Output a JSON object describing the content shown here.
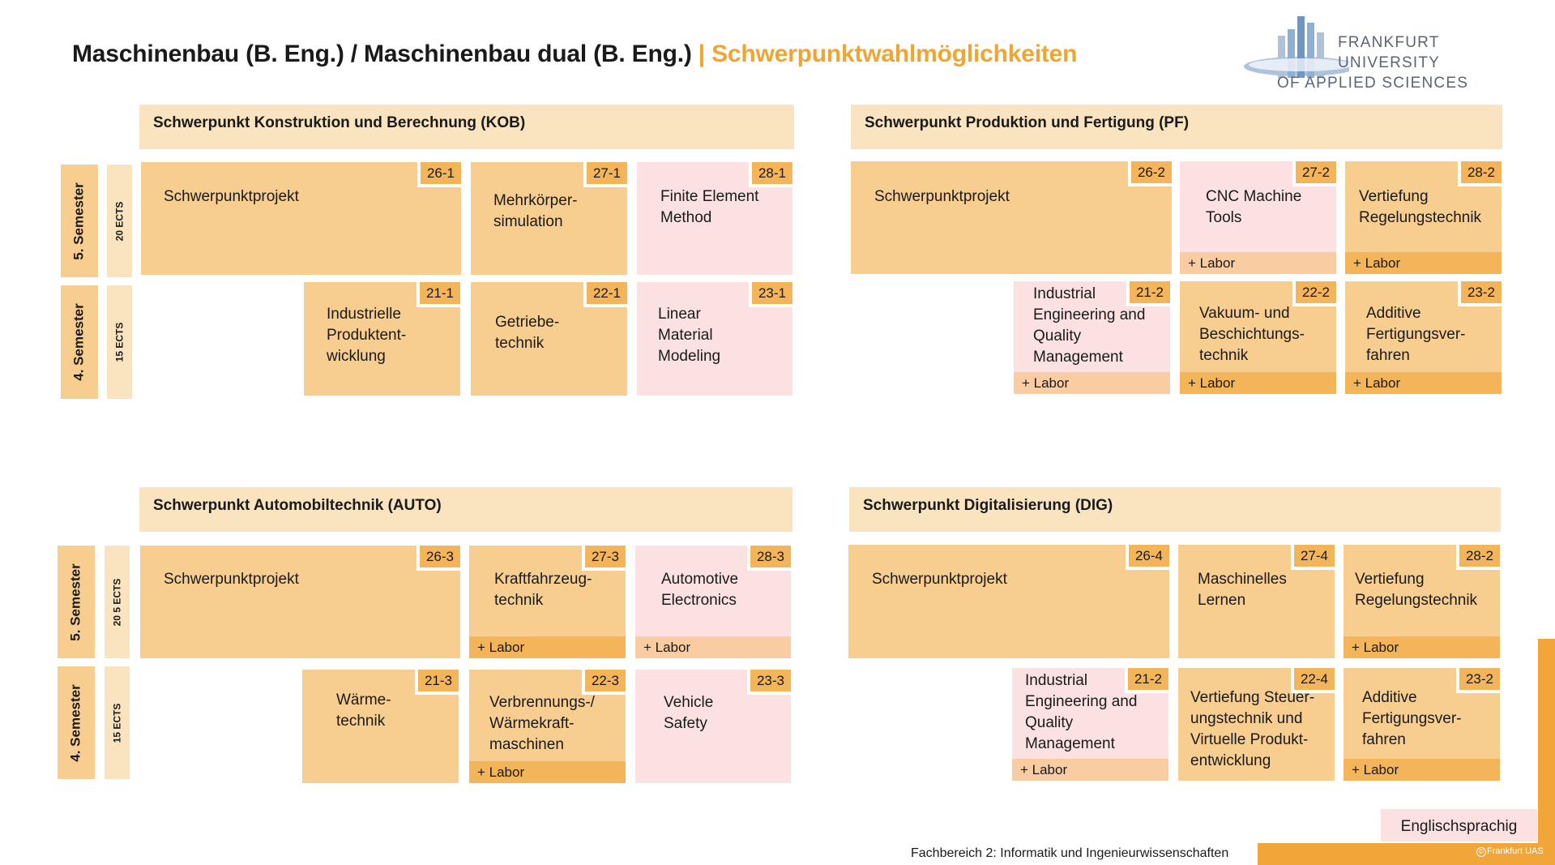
{
  "title": {
    "main": "Maschinenbau (B. Eng.) / Maschinenbau dual (B. Eng.)",
    "sep": " | ",
    "accent": "Schwerpunktwahlmöglichkeiten"
  },
  "logo": {
    "line1": "FRANKFURT",
    "line2": "UNIVERSITY",
    "line3": "OF APPLIED SCIENCES"
  },
  "labor": "+ Labor",
  "kob": {
    "header": "Schwerpunkt Konstruktion und Berechnung (KOB)",
    "sem5": "5.  Semester",
    "ects5": "20 ECTS",
    "sem4": "4.  Semester",
    "ects4": "15 ECTS",
    "m26": {
      "label": "Schwerpunktprojekt",
      "code": "26-1"
    },
    "m27": {
      "label": "Mehrkörper-\nsimulation",
      "code": "27-1"
    },
    "m28": {
      "label": "Finite Element\nMethod",
      "code": "28-1"
    },
    "m21": {
      "label": "Industrielle\nProduktent-\nwicklung",
      "code": "21-1"
    },
    "m22": {
      "label": "Getriebe-\ntechnik",
      "code": "22-1"
    },
    "m23": {
      "label": "Linear\nMaterial\nModeling",
      "code": "23-1"
    }
  },
  "pf": {
    "header": "Schwerpunkt Produktion und Fertigung (PF)",
    "m26": {
      "label": "Schwerpunktprojekt",
      "code": "26-2"
    },
    "m27": {
      "label": "CNC Machine\nTools",
      "code": "27-2"
    },
    "m28": {
      "label": "Vertiefung\nRegelungstechnik",
      "code": "28-2"
    },
    "m21": {
      "label": "Industrial\nEngineering and\nQuality\nManagement",
      "code": "21-2"
    },
    "m22": {
      "label": "Vakuum- und\nBeschichtungs-\ntechnik",
      "code": "22-2"
    },
    "m23": {
      "label": "Additive\nFertigungsver-\nfahren",
      "code": "23-2"
    }
  },
  "auto": {
    "header": "Schwerpunkt Automobiltechnik (AUTO)",
    "sem5": "5.  Semester",
    "ects5": "20 5 ECTS",
    "sem4": "4. Semester",
    "ects4": "15 ECTS",
    "m26": {
      "label": "Schwerpunktprojekt",
      "code": "26-3"
    },
    "m27": {
      "label": "Kraftfahrzeug-\ntechnik",
      "code": "27-3"
    },
    "m28": {
      "label": "Automotive\nElectronics",
      "code": "28-3"
    },
    "m21": {
      "label": "Wärme-\ntechnik",
      "code": "21-3"
    },
    "m22": {
      "label": "Verbrennungs-/\nWärmekraft-\nmaschinen",
      "code": "22-3"
    },
    "m23": {
      "label": "Vehicle\nSafety",
      "code": "23-3"
    }
  },
  "dig": {
    "header": "Schwerpunkt Digitalisierung (DIG)",
    "m26": {
      "label": "Schwerpunktprojekt",
      "code": "26-4"
    },
    "m27": {
      "label": "Maschinelles\nLernen",
      "code": "27-4"
    },
    "m28": {
      "label": "Vertiefung\nRegelungstechnik",
      "code": "28-2"
    },
    "m21": {
      "label": "Industrial\nEngineering and\nQuality\nManagement",
      "code": "21-2"
    },
    "m22": {
      "label": "Vertiefung Steuer-\nungstechnik und\nVirtuelle Produkt-\nentwicklung",
      "code": "22-4"
    },
    "m23": {
      "label": "Additive\nFertigungsver-\nfahren",
      "code": "23-2"
    }
  },
  "legend": {
    "english": "Englischsprachig"
  },
  "footer": "Fachbereich 2: Informatik und Ingenieurwissenschaften",
  "copyright": "Frankfurt UAS",
  "colors": {
    "accent": "#f0a532",
    "module": "#f7cd90",
    "english": "#fbe1e1",
    "header": "#fae3bf",
    "code": "#f4b45a"
  }
}
